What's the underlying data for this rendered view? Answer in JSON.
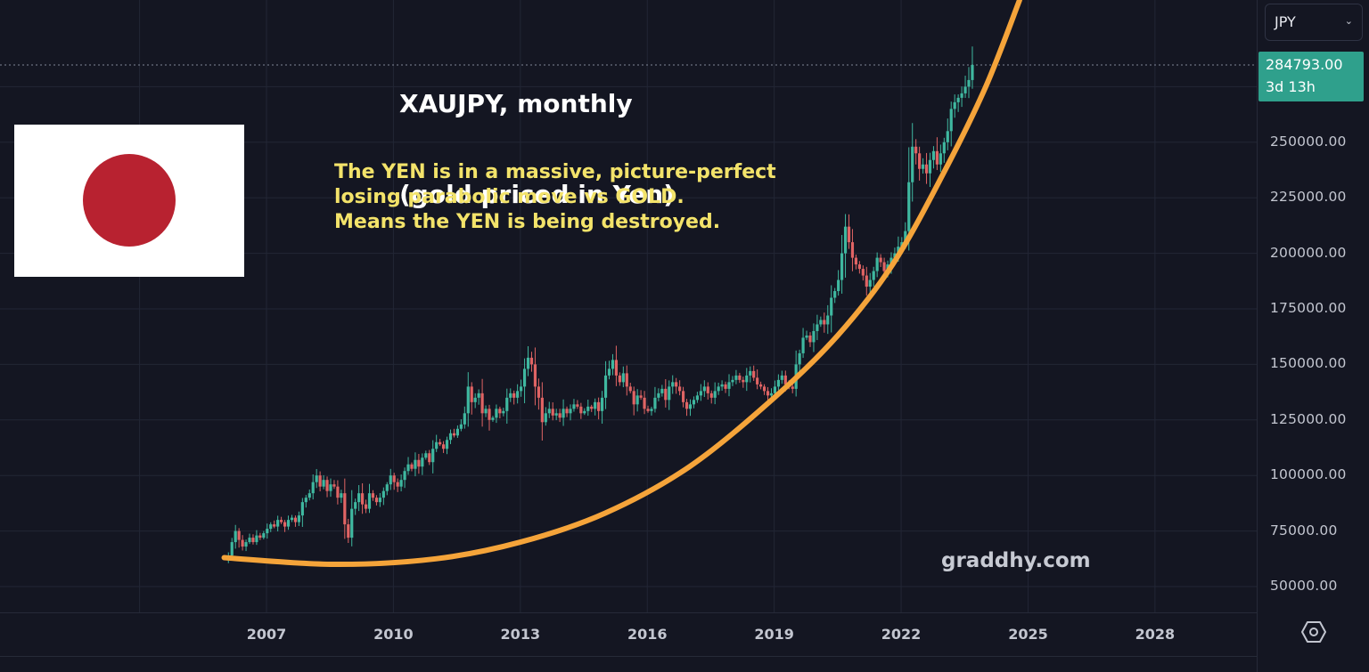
{
  "title": {
    "line1": "XAUJPY, monthly",
    "line2": "(gold priced in Yen)"
  },
  "annotation": {
    "line1": "The YEN is in a massive, picture-perfect",
    "line2": "losing parabolic move vs GOLD.",
    "line3": "Means the YEN is being destroyed."
  },
  "watermark": "graddhy.com",
  "flag": {
    "name": "japan-flag",
    "sun_color": "#b82230",
    "field_color": "#ffffff"
  },
  "price_axis": {
    "currency": "JPY",
    "last_price": "284793.00",
    "countdown": "3d 13h",
    "last_price_color": "#2fa08c",
    "settings_icon": "hexagon-gear-icon"
  },
  "colors": {
    "background": "#141622",
    "grid": "#222635",
    "up": "#3fb8a0",
    "down": "#e06464",
    "curve": "#f5a43a",
    "text": "#c3c6d0"
  },
  "chart_data": {
    "type": "candlestick",
    "title": "XAUJPY, monthly (gold priced in Yen)",
    "xlabel": "",
    "ylabel": "JPY",
    "ylim": [
      40000,
      300000
    ],
    "xlim": [
      2005.0,
      2030.5
    ],
    "y_ticks": [
      250000,
      225000,
      200000,
      175000,
      150000,
      125000,
      100000,
      75000,
      50000
    ],
    "y_tick_labels": [
      "250000.00",
      "225000.00",
      "200000.00",
      "175000.00",
      "150000.00",
      "125000.00",
      "100000.00",
      "75000.00",
      "50000.00"
    ],
    "x_ticks": [
      2007,
      2010,
      2013,
      2016,
      2019,
      2022,
      2025,
      2028
    ],
    "x_tick_labels": [
      "2007",
      "2010",
      "2013",
      "2016",
      "2019",
      "2022",
      "2025",
      "2028"
    ],
    "grid": true,
    "last_price": 284793,
    "start_year": 2006.1,
    "interval_months": 1,
    "monthly_close": [
      64000,
      70000,
      75000,
      71000,
      68000,
      70000,
      72000,
      70000,
      73000,
      72000,
      74000,
      76000,
      78000,
      77000,
      80000,
      79000,
      77000,
      80000,
      81000,
      79000,
      82000,
      88000,
      90000,
      92000,
      97000,
      100000,
      95000,
      98000,
      93000,
      96000,
      95000,
      90000,
      92000,
      78000,
      72000,
      85000,
      88000,
      92000,
      87000,
      85000,
      92000,
      90000,
      88000,
      90000,
      93000,
      96000,
      100000,
      97000,
      95000,
      98000,
      102000,
      105000,
      103000,
      107000,
      104000,
      108000,
      110000,
      106000,
      112000,
      115000,
      114000,
      112000,
      116000,
      119000,
      118000,
      121000,
      123000,
      128000,
      140000,
      133000,
      135000,
      137000,
      128000,
      130000,
      125000,
      126000,
      130000,
      128000,
      129000,
      135000,
      137000,
      135000,
      138000,
      140000,
      148000,
      153000,
      150000,
      140000,
      135000,
      124000,
      128000,
      130000,
      127000,
      128000,
      126000,
      130000,
      128000,
      130000,
      132000,
      131000,
      128000,
      129000,
      131000,
      130000,
      133000,
      129000,
      135000,
      145000,
      148000,
      152000,
      145000,
      142000,
      146000,
      140000,
      138000,
      132000,
      136000,
      135000,
      130000,
      129000,
      130000,
      135000,
      137000,
      139000,
      134000,
      140000,
      142000,
      140000,
      138000,
      133000,
      130000,
      132000,
      134000,
      136000,
      138000,
      140000,
      137000,
      135000,
      138000,
      140000,
      141000,
      139000,
      142000,
      143000,
      145000,
      143000,
      142000,
      145000,
      147000,
      144000,
      141000,
      140000,
      138000,
      136000,
      137000,
      140000,
      143000,
      145000,
      141000,
      140000,
      139000,
      150000,
      155000,
      162000,
      163000,
      160000,
      165000,
      168000,
      170000,
      168000,
      172000,
      180000,
      183000,
      188000,
      200000,
      212000,
      205000,
      198000,
      195000,
      193000,
      190000,
      185000,
      188000,
      192000,
      198000,
      196000,
      192000,
      195000,
      198000,
      200000,
      203000,
      205000,
      210000,
      232000,
      248000,
      245000,
      238000,
      240000,
      236000,
      242000,
      246000,
      240000,
      245000,
      250000,
      255000,
      265000,
      268000,
      270000,
      272000,
      275000,
      278000,
      284793
    ],
    "series": [
      {
        "name": "XAUJPY monthly candles",
        "role": "price"
      },
      {
        "name": "Parabolic trend curve",
        "role": "annotation",
        "points": [
          [
            2006.0,
            63000
          ],
          [
            2008.6,
            60000
          ],
          [
            2011.0,
            62500
          ],
          [
            2013.0,
            70000
          ],
          [
            2015.0,
            83000
          ],
          [
            2017.0,
            104000
          ],
          [
            2019.0,
            135000
          ],
          [
            2020.5,
            163000
          ],
          [
            2021.8,
            195000
          ],
          [
            2023.0,
            236000
          ],
          [
            2024.0,
            275000
          ],
          [
            2024.8,
            314000
          ]
        ]
      }
    ]
  }
}
